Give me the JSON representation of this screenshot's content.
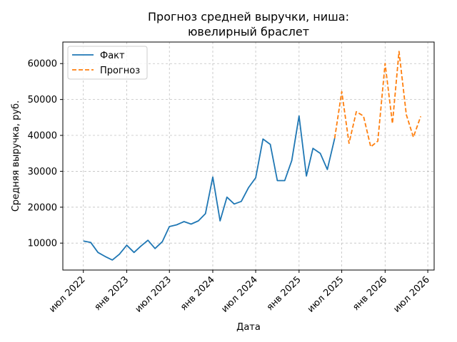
{
  "chart_data": {
    "type": "line",
    "title_lines": [
      "Прогноз средней выручки, ниша:",
      "ювелирный браслет"
    ],
    "xlabel": "Дата",
    "ylabel": "Средняя выручка, руб.",
    "ylim": [
      2500,
      66000
    ],
    "xlim": [
      "2022-04-05",
      "2026-07-28"
    ],
    "grid": true,
    "legend_position": "top-left",
    "x_ticks": [
      {
        "date": "2022-07-01",
        "label": "июл 2022"
      },
      {
        "date": "2023-01-01",
        "label": "янв 2023"
      },
      {
        "date": "2023-07-01",
        "label": "июл 2023"
      },
      {
        "date": "2024-01-01",
        "label": "янв 2024"
      },
      {
        "date": "2024-07-01",
        "label": "июл 2024"
      },
      {
        "date": "2025-01-01",
        "label": "янв 2025"
      },
      {
        "date": "2025-07-01",
        "label": "июл 2025"
      },
      {
        "date": "2026-01-01",
        "label": "янв 2026"
      },
      {
        "date": "2026-07-01",
        "label": "июл 2026"
      }
    ],
    "y_ticks": [
      {
        "value": 10000,
        "label": "10000"
      },
      {
        "value": 20000,
        "label": "20000"
      },
      {
        "value": 30000,
        "label": "30000"
      },
      {
        "value": 40000,
        "label": "40000"
      },
      {
        "value": 50000,
        "label": "50000"
      },
      {
        "value": 60000,
        "label": "60000"
      }
    ],
    "series": [
      {
        "name": "Факт",
        "color": "#1f77b4",
        "style": "solid",
        "points": [
          {
            "x": "2022-07-01",
            "y": 10600
          },
          {
            "x": "2022-08-01",
            "y": 10200
          },
          {
            "x": "2022-09-01",
            "y": 7400
          },
          {
            "x": "2022-10-01",
            "y": 6300
          },
          {
            "x": "2022-11-01",
            "y": 5300
          },
          {
            "x": "2022-12-01",
            "y": 6900
          },
          {
            "x": "2023-01-01",
            "y": 9400
          },
          {
            "x": "2023-02-01",
            "y": 7400
          },
          {
            "x": "2023-03-01",
            "y": 9100
          },
          {
            "x": "2023-04-01",
            "y": 10800
          },
          {
            "x": "2023-05-01",
            "y": 8500
          },
          {
            "x": "2023-06-01",
            "y": 10400
          },
          {
            "x": "2023-07-01",
            "y": 14600
          },
          {
            "x": "2023-08-01",
            "y": 15100
          },
          {
            "x": "2023-09-01",
            "y": 16000
          },
          {
            "x": "2023-10-01",
            "y": 15300
          },
          {
            "x": "2023-11-01",
            "y": 16200
          },
          {
            "x": "2023-12-01",
            "y": 18200
          },
          {
            "x": "2024-01-01",
            "y": 28400
          },
          {
            "x": "2024-02-01",
            "y": 16200
          },
          {
            "x": "2024-03-01",
            "y": 22800
          },
          {
            "x": "2024-04-01",
            "y": 20900
          },
          {
            "x": "2024-05-01",
            "y": 21600
          },
          {
            "x": "2024-06-01",
            "y": 25500
          },
          {
            "x": "2024-07-01",
            "y": 28200
          },
          {
            "x": "2024-08-01",
            "y": 39000
          },
          {
            "x": "2024-09-01",
            "y": 37500
          },
          {
            "x": "2024-10-01",
            "y": 27400
          },
          {
            "x": "2024-11-01",
            "y": 27400
          },
          {
            "x": "2024-12-01",
            "y": 33000
          },
          {
            "x": "2025-01-01",
            "y": 45400
          },
          {
            "x": "2025-02-01",
            "y": 28700
          },
          {
            "x": "2025-03-01",
            "y": 36400
          },
          {
            "x": "2025-04-01",
            "y": 35000
          },
          {
            "x": "2025-05-01",
            "y": 30500
          },
          {
            "x": "2025-06-01",
            "y": 39200
          }
        ]
      },
      {
        "name": "Прогноз",
        "color": "#ff7f0e",
        "style": "dashed",
        "points": [
          {
            "x": "2025-06-01",
            "y": 39200
          },
          {
            "x": "2025-07-01",
            "y": 52200
          },
          {
            "x": "2025-08-01",
            "y": 37800
          },
          {
            "x": "2025-09-01",
            "y": 46600
          },
          {
            "x": "2025-10-01",
            "y": 45400
          },
          {
            "x": "2025-11-01",
            "y": 36800
          },
          {
            "x": "2025-12-01",
            "y": 38400
          },
          {
            "x": "2026-01-01",
            "y": 60000
          },
          {
            "x": "2026-02-01",
            "y": 43300
          },
          {
            "x": "2026-03-01",
            "y": 63400
          },
          {
            "x": "2026-04-01",
            "y": 45800
          },
          {
            "x": "2026-05-01",
            "y": 39500
          },
          {
            "x": "2026-06-01",
            "y": 45300
          }
        ]
      }
    ]
  }
}
